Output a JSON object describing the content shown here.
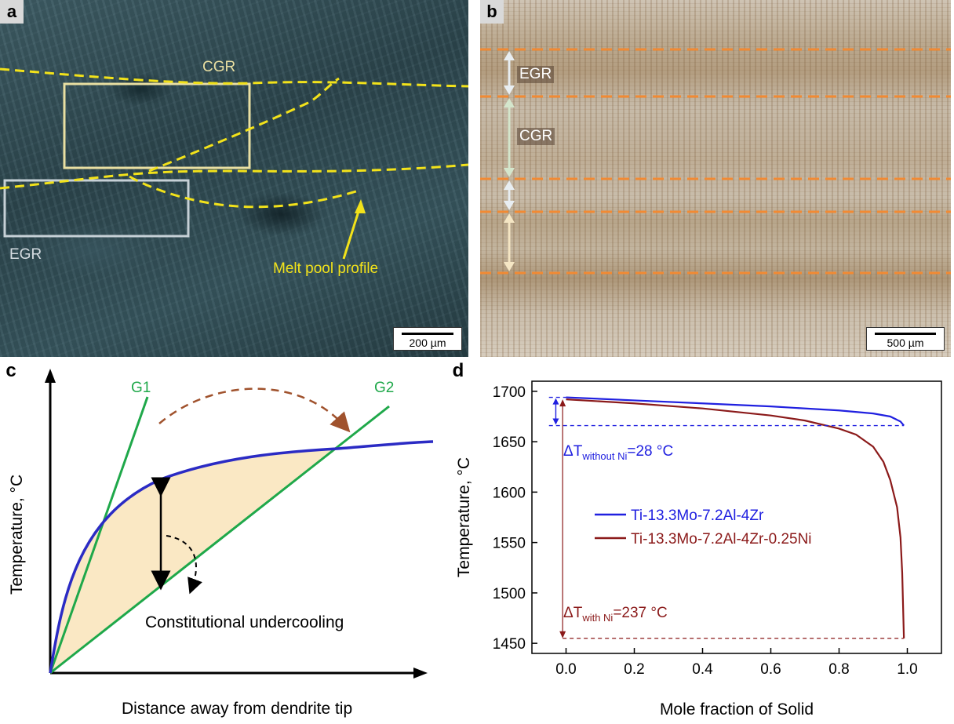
{
  "panel_a": {
    "letter": "a",
    "labels": {
      "cgr": "CGR",
      "egr": "EGR",
      "melt_pool": "Melt pool profile"
    },
    "scale_bar": "200 µm",
    "colors": {
      "melt_pool_line": "#f2e21a",
      "cgr_box": "#e9dfa2",
      "egr_box": "#c6d0d6"
    }
  },
  "panel_b": {
    "letter": "b",
    "labels": {
      "egr": "EGR",
      "cgr": "CGR"
    },
    "scale_bar": "500 µm",
    "colors": {
      "boundary_line": "#f28a33"
    }
  },
  "panel_c": {
    "letter": "c",
    "ylabel": "Temperature, °C",
    "xlabel": "Distance away from dendrite tip",
    "g1": "G1",
    "g2": "G2",
    "annotation": "Constitutional undercooling",
    "colors": {
      "gradient_lines": "#1fa84a",
      "curve": "#2b2bc4",
      "fill": "#fae8c4",
      "arrow": "#a0522d"
    }
  },
  "panel_d": {
    "letter": "d",
    "chart_data": {
      "type": "line",
      "xlabel": "Mole fraction of Solid",
      "ylabel": "Temperature, °C",
      "xlim": [
        -0.1,
        1.1
      ],
      "ylim": [
        1440,
        1710
      ],
      "xticks": [
        0.0,
        0.2,
        0.4,
        0.6,
        0.8,
        1.0
      ],
      "xtick_labels": [
        "0.0",
        "0.2",
        "0.4",
        "0.6",
        "0.8",
        "1.0"
      ],
      "yticks": [
        1450,
        1500,
        1550,
        1600,
        1650,
        1700
      ],
      "ytick_labels": [
        "1450",
        "1500",
        "1550",
        "1600",
        "1650",
        "1700"
      ],
      "series": [
        {
          "name": "Ti-13.3Mo-7.2Al-4Zr",
          "color": "#2020e0",
          "x": [
            0.0,
            0.2,
            0.4,
            0.6,
            0.8,
            0.9,
            0.95,
            0.98,
            0.99
          ],
          "y": [
            1694,
            1691,
            1688,
            1685,
            1681,
            1678,
            1675,
            1670,
            1666
          ]
        },
        {
          "name": "Ti-13.3Mo-7.2Al-4Zr-0.25Ni",
          "color": "#8b1a1a",
          "x": [
            0.0,
            0.2,
            0.4,
            0.6,
            0.7,
            0.8,
            0.85,
            0.9,
            0.93,
            0.95,
            0.97,
            0.98,
            0.985,
            0.99
          ],
          "y": [
            1692,
            1688,
            1683,
            1676,
            1671,
            1663,
            1657,
            1645,
            1630,
            1612,
            1585,
            1555,
            1520,
            1455
          ]
        }
      ],
      "annotations": {
        "dt_without_prefix": "ΔT",
        "dt_without_sub": "without Ni",
        "dt_without_value": "=28 °C",
        "dt_with_prefix": "ΔT",
        "dt_with_sub": "with Ni",
        "dt_with_value": "=237 °C"
      },
      "legend_position": "center-left"
    }
  }
}
